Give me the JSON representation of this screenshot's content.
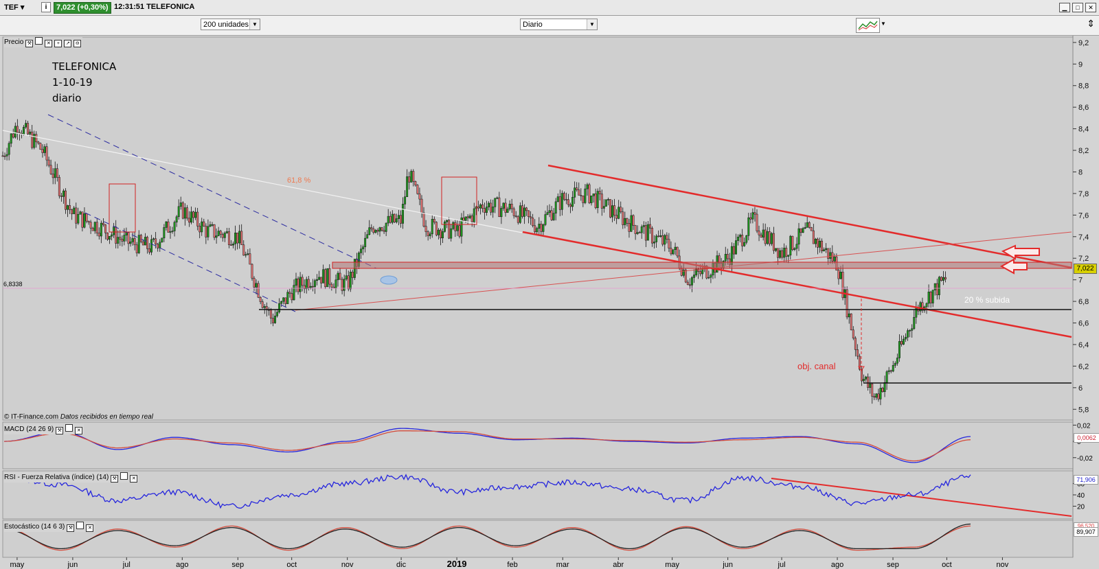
{
  "toolbar": {
    "symbol": "TEF",
    "info_icon": "i",
    "price_change": "7,022 (+0,30%)",
    "time_name": "12:31:51 TELEFONICA",
    "units_select": "200 unidades",
    "period_select": "Diario",
    "window_icons": [
      "minimize-icon",
      "maximize-icon",
      "close-icon"
    ]
  },
  "price_panel": {
    "label": "Precio",
    "annotation_title": [
      "TELEFONICA",
      "1-10-19",
      "diario"
    ],
    "fib_label": "61,8 %",
    "pct_label": "20 % subida",
    "target_label": "obj. canal",
    "credit": "© IT-Finance.com",
    "credit_note": "Datos recibidos en tiempo real",
    "last_price": "7,022",
    "ref_price": "6,8338",
    "y_ticks": [
      "9,2",
      "9",
      "8,8",
      "8,6",
      "8,4",
      "8,2",
      "8",
      "7,8",
      "7,6",
      "7,4",
      "7,2",
      "7",
      "6,8",
      "6,6",
      "6,4",
      "6,2",
      "6",
      "5,8"
    ]
  },
  "macd_panel": {
    "label": "MACD (24 26 9)",
    "y_ticks": [
      "0,02",
      "0",
      "-0,02"
    ],
    "last_value": "0,0062"
  },
  "rsi_panel": {
    "label": "RSI - Fuerza Relativa (índice) (14)",
    "y_ticks": [
      "60",
      "40",
      "20"
    ],
    "last_value": "71,906"
  },
  "stoch_panel": {
    "label": "Estocástico (14 6 3)",
    "last_value": "89,907",
    "hidden_value": "96,520"
  },
  "x_axis": {
    "labels": [
      "may",
      "jun",
      "jul",
      "ago",
      "sep",
      "oct",
      "nov",
      "dic",
      "2019",
      "feb",
      "mar",
      "abr",
      "may",
      "jun",
      "jul",
      "ago",
      "sep",
      "oct",
      "nov"
    ]
  },
  "colors": {
    "up_candle": "#1f9a1f",
    "down_candle": "#e07070",
    "channel": "#e32b2b",
    "macd_line": "#2525dd",
    "signal_line": "#d44c3c",
    "last_price_bg": "#d8d000"
  },
  "chart_data": [
    {
      "type": "line",
      "title": "TELEFONICA",
      "xlabel": "",
      "ylabel": "",
      "x": [
        "2018-04-23",
        "2018-05-01",
        "2018-05-15",
        "2018-06-01",
        "2018-06-15",
        "2018-07-01",
        "2018-07-15",
        "2018-08-01",
        "2018-08-15",
        "2018-09-01",
        "2018-09-15",
        "2018-09-20",
        "2018-10-01",
        "2018-10-15",
        "2018-11-01",
        "2018-11-15",
        "2018-12-01",
        "2018-12-05",
        "2018-12-15",
        "2019-01-01",
        "2019-01-15",
        "2019-02-01",
        "2019-02-15",
        "2019-03-01",
        "2019-03-15",
        "2019-04-01",
        "2019-04-15",
        "2019-05-01",
        "2019-05-10",
        "2019-06-01",
        "2019-06-15",
        "2019-07-01",
        "2019-07-15",
        "2019-08-01",
        "2019-08-15",
        "2019-08-22",
        "2019-09-01",
        "2019-09-15",
        "2019-10-01"
      ],
      "series": [
        {
          "values": [
            8.15,
            8.45,
            8.2,
            7.6,
            7.5,
            7.35,
            7.3,
            7.65,
            7.45,
            7.4,
            6.8,
            6.63,
            6.9,
            7.05,
            6.95,
            7.5,
            7.55,
            8.0,
            7.5,
            7.45,
            7.7,
            7.65,
            7.5,
            7.75,
            7.8,
            7.6,
            7.45,
            7.3,
            7.0,
            7.2,
            7.55,
            7.25,
            7.45,
            7.15,
            6.1,
            5.9,
            6.2,
            6.75,
            7.02
          ]
        }
      ],
      "ylim": [
        5.7,
        9.25
      ],
      "y_ticks": [
        9.2,
        9,
        8.8,
        8.6,
        8.4,
        8.2,
        8,
        7.8,
        7.6,
        7.4,
        7.2,
        7,
        6.8,
        6.6,
        6.4,
        6.2,
        6,
        5.8
      ],
      "grid": false
    },
    {
      "type": "line",
      "title": "MACD (24 26 9)",
      "xlabel": "",
      "ylabel": "",
      "x": [
        "may",
        "jun",
        "jul",
        "ago",
        "sep",
        "oct",
        "nov",
        "dic",
        "2019",
        "feb",
        "mar",
        "abr",
        "may",
        "jun",
        "jul",
        "ago",
        "sep",
        "oct"
      ],
      "series": [
        {
          "values": [
            0.0,
            0.012,
            -0.01,
            0.005,
            -0.004,
            -0.013,
            0.0,
            0.016,
            0.01,
            0.002,
            0.004,
            0.0,
            -0.002,
            0.004,
            0.006,
            -0.003,
            -0.026,
            0.006
          ]
        },
        {
          "values": [
            0.0,
            0.01,
            -0.008,
            0.003,
            -0.002,
            -0.011,
            -0.002,
            0.013,
            0.012,
            0.003,
            0.003,
            0.001,
            -0.001,
            0.002,
            0.005,
            -0.001,
            -0.024,
            0.002
          ]
        }
      ],
      "ylim": [
        -0.032,
        0.022
      ]
    },
    {
      "type": "line",
      "title": "RSI - Fuerza Relativa (índice) (14)",
      "xlabel": "",
      "ylabel": "",
      "x": [
        "may",
        "jun",
        "jul",
        "ago",
        "sep",
        "oct",
        "nov",
        "dic",
        "2019",
        "feb",
        "mar",
        "abr",
        "may",
        "jun",
        "jul",
        "ago",
        "sep",
        "oct"
      ],
      "series": [
        {
          "values": [
            72,
            58,
            30,
            45,
            20,
            40,
            60,
            72,
            45,
            55,
            62,
            50,
            30,
            70,
            55,
            25,
            40,
            71.9
          ]
        }
      ],
      "ylim": [
        0,
        80
      ]
    },
    {
      "type": "line",
      "title": "Estocástico (14 6 3)",
      "xlabel": "",
      "ylabel": "",
      "x": [
        "may",
        "jun",
        "jul",
        "ago",
        "sep",
        "oct",
        "nov",
        "dic",
        "2019",
        "feb",
        "mar",
        "abr",
        "may",
        "jun",
        "jul",
        "ago",
        "sep",
        "oct"
      ],
      "series": [
        {
          "values": [
            85,
            10,
            80,
            20,
            90,
            10,
            85,
            15,
            90,
            20,
            85,
            10,
            88,
            15,
            80,
            10,
            20,
            89.9
          ]
        },
        {
          "values": [
            80,
            15,
            75,
            25,
            85,
            15,
            80,
            20,
            85,
            25,
            80,
            15,
            84,
            20,
            75,
            15,
            15,
            96.5
          ]
        }
      ],
      "ylim": [
        0,
        100
      ]
    }
  ]
}
